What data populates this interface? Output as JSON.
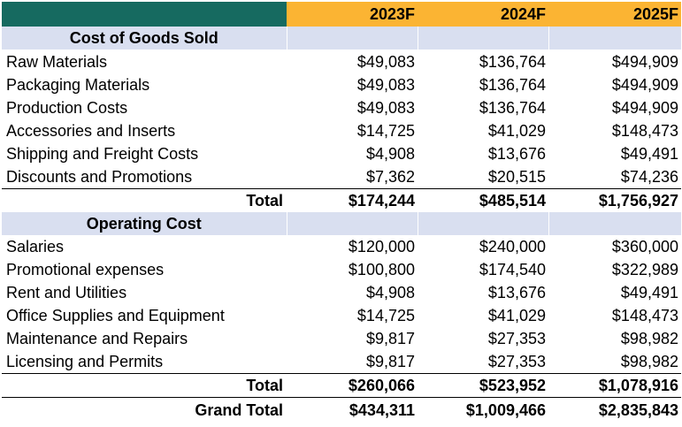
{
  "header": {
    "columns": [
      "2023F",
      "2024F",
      "2025F"
    ]
  },
  "cogs": {
    "title": "Cost of Goods Sold",
    "rows": [
      {
        "label": "Raw Materials",
        "values": [
          "$49,083",
          "$136,764",
          "$494,909"
        ]
      },
      {
        "label": "Packaging Materials",
        "values": [
          "$49,083",
          "$136,764",
          "$494,909"
        ]
      },
      {
        "label": "Production Costs",
        "values": [
          "$49,083",
          "$136,764",
          "$494,909"
        ]
      },
      {
        "label": "Accessories and Inserts",
        "values": [
          "$14,725",
          "$41,029",
          "$148,473"
        ]
      },
      {
        "label": "Shipping and Freight Costs",
        "values": [
          "$4,908",
          "$13,676",
          "$49,491"
        ]
      },
      {
        "label": "Discounts and Promotions",
        "values": [
          "$7,362",
          "$20,515",
          "$74,236"
        ]
      }
    ],
    "total": {
      "label": "Total",
      "values": [
        "$174,244",
        "$485,514",
        "$1,756,927"
      ]
    }
  },
  "opex": {
    "title": "Operating Cost",
    "rows": [
      {
        "label": "Salaries",
        "values": [
          "$120,000",
          "$240,000",
          "$360,000"
        ]
      },
      {
        "label": "Promotional expenses",
        "values": [
          "$100,800",
          "$174,540",
          "$322,989"
        ]
      },
      {
        "label": "Rent and Utilities",
        "values": [
          "$4,908",
          "$13,676",
          "$49,491"
        ]
      },
      {
        "label": "Office Supplies and Equipment",
        "values": [
          "$14,725",
          "$41,029",
          "$148,473"
        ]
      },
      {
        "label": "Maintenance and Repairs",
        "values": [
          "$9,817",
          "$27,353",
          "$98,982"
        ]
      },
      {
        "label": "Licensing and Permits",
        "values": [
          "$9,817",
          "$27,353",
          "$98,982"
        ]
      }
    ],
    "total": {
      "label": "Total",
      "values": [
        "$260,066",
        "$523,952",
        "$1,078,916"
      ]
    }
  },
  "grand_total": {
    "label": "Grand Total",
    "values": [
      "$434,311",
      "$1,009,466",
      "$2,835,843"
    ]
  },
  "colors": {
    "corner": "#166a60",
    "header": "#fbb433",
    "section": "#d9dff0"
  }
}
